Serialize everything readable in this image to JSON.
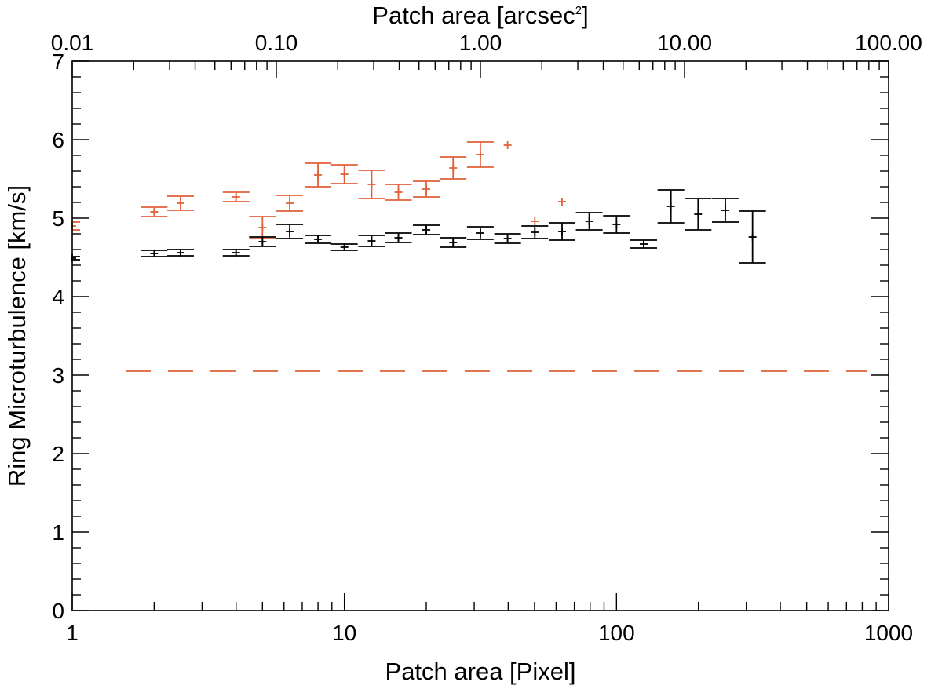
{
  "chart_data": {
    "type": "scatter",
    "title": "",
    "xlabel": "Patch area [Pixel]",
    "ylabel": "Ring Microturbulence [km/s]",
    "top_xlabel": {
      "text": "Patch area [arcsec",
      "superscript": "2",
      "suffix": "]"
    },
    "xscale": "log",
    "xlim": [
      1,
      1000
    ],
    "ylim": [
      0,
      7
    ],
    "x_ticks": [
      "1",
      "10",
      "100",
      "1000"
    ],
    "y_ticks": [
      "0",
      "1",
      "2",
      "3",
      "4",
      "5",
      "6",
      "7"
    ],
    "top_x_ticks": [
      "0.01",
      "0.10",
      "1.00",
      "10.00",
      "100.00"
    ],
    "top_xlim": [
      0.01,
      100
    ],
    "reference_line": {
      "y": 3.05,
      "style": "dashed",
      "color": "#e0603a"
    },
    "series": [
      {
        "name": "orange",
        "color": "#e0603a",
        "points": [
          {
            "x": 1.0,
            "y": 4.9,
            "err": 0.05
          },
          {
            "x": 2.0,
            "y": 5.08,
            "err": 0.06
          },
          {
            "x": 2.5,
            "y": 5.19,
            "err": 0.09
          },
          {
            "x": 4.0,
            "y": 5.27,
            "err": 0.06
          },
          {
            "x": 5.0,
            "y": 4.88,
            "err": 0.14
          },
          {
            "x": 6.3,
            "y": 5.19,
            "err": 0.1
          },
          {
            "x": 8.0,
            "y": 5.55,
            "err": 0.15
          },
          {
            "x": 10.0,
            "y": 5.56,
            "err": 0.12
          },
          {
            "x": 12.6,
            "y": 5.43,
            "err": 0.18
          },
          {
            "x": 15.8,
            "y": 5.33,
            "err": 0.1
          },
          {
            "x": 20.0,
            "y": 5.37,
            "err": 0.1
          },
          {
            "x": 25.1,
            "y": 5.64,
            "err": 0.14
          },
          {
            "x": 31.6,
            "y": 5.81,
            "err": 0.16
          },
          {
            "x": 39.8,
            "y": 5.93,
            "err": 0.0
          },
          {
            "x": 50.1,
            "y": 4.96,
            "err": 0.0
          },
          {
            "x": 63.1,
            "y": 5.21,
            "err": 0.0
          }
        ]
      },
      {
        "name": "black",
        "color": "#000000",
        "points": [
          {
            "x": 1.0,
            "y": 4.49,
            "err": 0.02
          },
          {
            "x": 2.0,
            "y": 4.55,
            "err": 0.04
          },
          {
            "x": 2.5,
            "y": 4.56,
            "err": 0.04
          },
          {
            "x": 4.0,
            "y": 4.56,
            "err": 0.04
          },
          {
            "x": 5.0,
            "y": 4.7,
            "err": 0.06
          },
          {
            "x": 6.3,
            "y": 4.83,
            "err": 0.09
          },
          {
            "x": 8.0,
            "y": 4.73,
            "err": 0.05
          },
          {
            "x": 10.0,
            "y": 4.63,
            "err": 0.04
          },
          {
            "x": 12.6,
            "y": 4.71,
            "err": 0.07
          },
          {
            "x": 15.8,
            "y": 4.75,
            "err": 0.06
          },
          {
            "x": 20.0,
            "y": 4.85,
            "err": 0.06
          },
          {
            "x": 25.1,
            "y": 4.69,
            "err": 0.06
          },
          {
            "x": 31.6,
            "y": 4.81,
            "err": 0.08
          },
          {
            "x": 39.8,
            "y": 4.74,
            "err": 0.06
          },
          {
            "x": 50.1,
            "y": 4.82,
            "err": 0.08
          },
          {
            "x": 63.1,
            "y": 4.83,
            "err": 0.11
          },
          {
            "x": 79.4,
            "y": 4.96,
            "err": 0.11
          },
          {
            "x": 100.0,
            "y": 4.92,
            "err": 0.11
          },
          {
            "x": 125.9,
            "y": 4.67,
            "err": 0.05
          },
          {
            "x": 158.5,
            "y": 5.15,
            "err": 0.21
          },
          {
            "x": 199.5,
            "y": 5.05,
            "err": 0.2
          },
          {
            "x": 251.2,
            "y": 5.1,
            "err": 0.15
          },
          {
            "x": 316.2,
            "y": 4.76,
            "err": 0.33
          }
        ]
      }
    ]
  }
}
